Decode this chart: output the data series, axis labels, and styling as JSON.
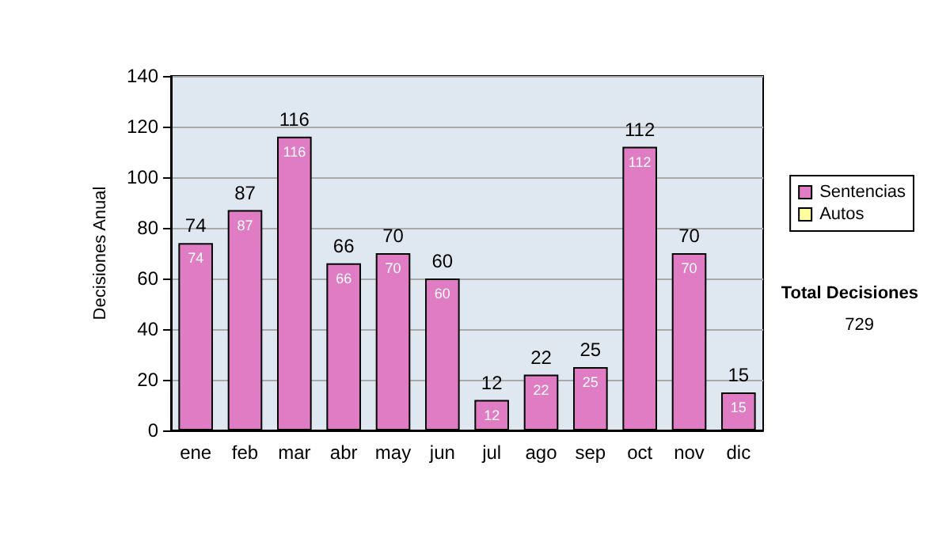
{
  "chart_data": {
    "type": "bar",
    "ylabel": "Decisiones Anual",
    "categories": [
      "ene",
      "feb",
      "mar",
      "abr",
      "may",
      "jun",
      "jul",
      "ago",
      "sep",
      "oct",
      "nov",
      "dic"
    ],
    "series": [
      {
        "name": "Sentencias",
        "color": "#e07cc4",
        "values": [
          74,
          87,
          116,
          66,
          70,
          60,
          12,
          22,
          25,
          112,
          70,
          15
        ],
        "value_labels": [
          "74",
          "87",
          "116",
          "66",
          "70",
          "60",
          "12",
          "22",
          "25",
          "112",
          "70",
          "15"
        ]
      },
      {
        "name": "Autos",
        "color": "#ffffa0",
        "values": [
          null,
          null,
          null,
          null,
          null,
          null,
          null,
          null,
          null,
          null,
          null,
          null
        ]
      }
    ],
    "stacked": true,
    "totals": [
      "74",
      "87",
      "116",
      "66",
      "70",
      "60",
      "12",
      "22",
      "25",
      "112",
      "70",
      "15"
    ],
    "ylim": [
      0,
      140
    ],
    "yticks": [
      0,
      20,
      40,
      60,
      80,
      100,
      120,
      140
    ],
    "grid": "y",
    "legend": "right",
    "annotations": [
      "Total Decisiones",
      "729"
    ]
  }
}
